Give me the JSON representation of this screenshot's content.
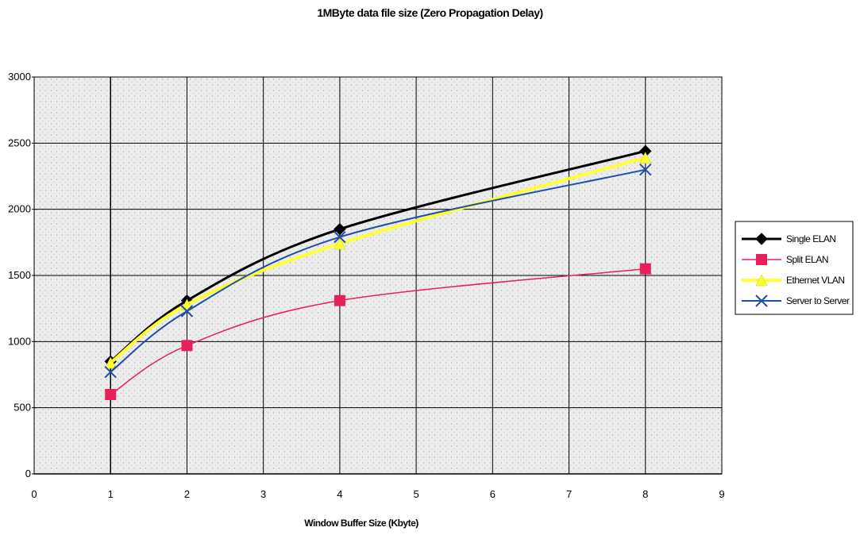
{
  "chart_data": {
    "type": "line",
    "title": "1MByte data file size (Zero Propagation Delay)",
    "xlabel": "Window Buffer Size (Kbyte)",
    "ylabel": "",
    "x": [
      1,
      2,
      4,
      8
    ],
    "xlim": [
      0,
      9
    ],
    "ylim": [
      0,
      3000
    ],
    "xticks": [
      0,
      1,
      2,
      3,
      4,
      5,
      6,
      7,
      8,
      9
    ],
    "yticks": [
      0,
      500,
      1000,
      1500,
      2000,
      2500,
      3000
    ],
    "grid": true,
    "legend_position": "right",
    "series": [
      {
        "name": "Single ELAN",
        "values": [
          850,
          1310,
          1850,
          2440
        ],
        "color": "#000000",
        "marker": "diamond"
      },
      {
        "name": "Split ELAN",
        "values": [
          600,
          970,
          1310,
          1550
        ],
        "color": "#e8205a",
        "marker": "square"
      },
      {
        "name": "Ethernet VLAN",
        "values": [
          840,
          1280,
          1740,
          2390
        ],
        "color": "#ffff33",
        "marker": "triangle"
      },
      {
        "name": "Server to Server",
        "values": [
          770,
          1230,
          1790,
          2300
        ],
        "color": "#1f4ea8",
        "marker": "x"
      }
    ]
  }
}
